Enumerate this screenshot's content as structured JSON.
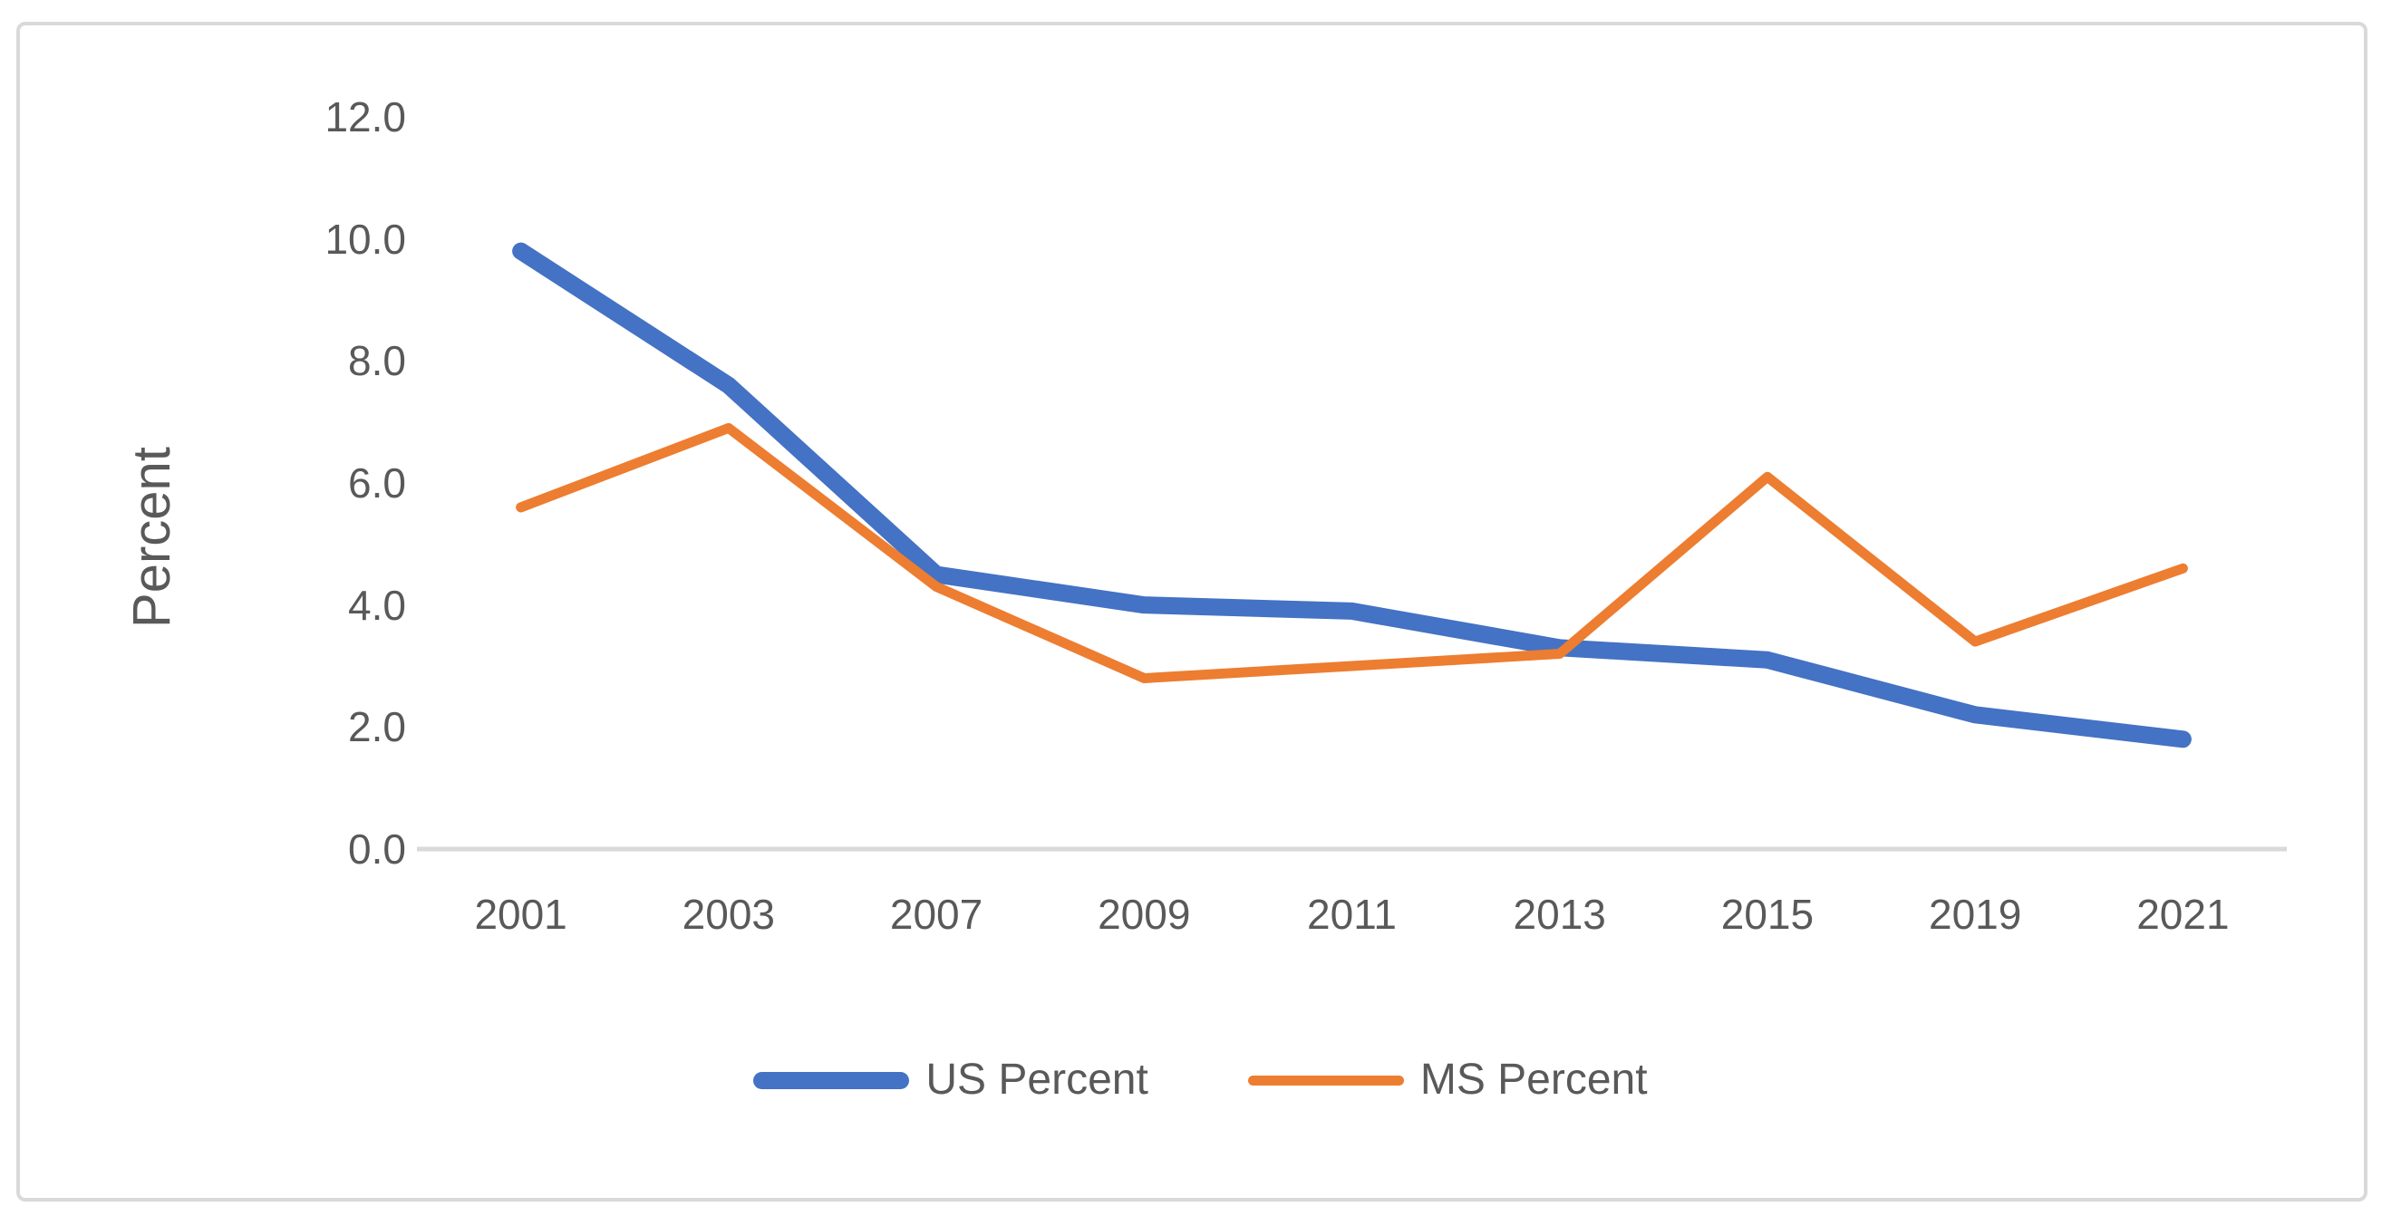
{
  "chart_data": {
    "type": "line",
    "categories": [
      "2001",
      "2003",
      "2007",
      "2009",
      "2011",
      "2013",
      "2015",
      "2019",
      "2021"
    ],
    "series": [
      {
        "name": "US Percent",
        "values": [
          9.8,
          7.6,
          4.5,
          4.0,
          3.9,
          3.3,
          3.1,
          2.2,
          1.8
        ],
        "color": "#4472C4",
        "stroke_width": 19
      },
      {
        "name": "MS Percent",
        "values": [
          5.6,
          6.9,
          4.3,
          2.8,
          3.0,
          3.2,
          6.1,
          3.4,
          4.6
        ],
        "color": "#ED7D31",
        "stroke_width": 11
      }
    ],
    "title": "",
    "xlabel": "",
    "ylabel": "Percent",
    "ylim": [
      0,
      12
    ],
    "ytick_step": 2,
    "ytick_labels": [
      "0.0",
      "2.0",
      "4.0",
      "6.0",
      "8.0",
      "10.0",
      "12.0"
    ],
    "grid": false,
    "legend_position": "bottom"
  },
  "colors": {
    "text": "#595959",
    "axis_line": "#D9D9D9",
    "border": "#D9D9D9",
    "background": "#FFFFFF"
  }
}
